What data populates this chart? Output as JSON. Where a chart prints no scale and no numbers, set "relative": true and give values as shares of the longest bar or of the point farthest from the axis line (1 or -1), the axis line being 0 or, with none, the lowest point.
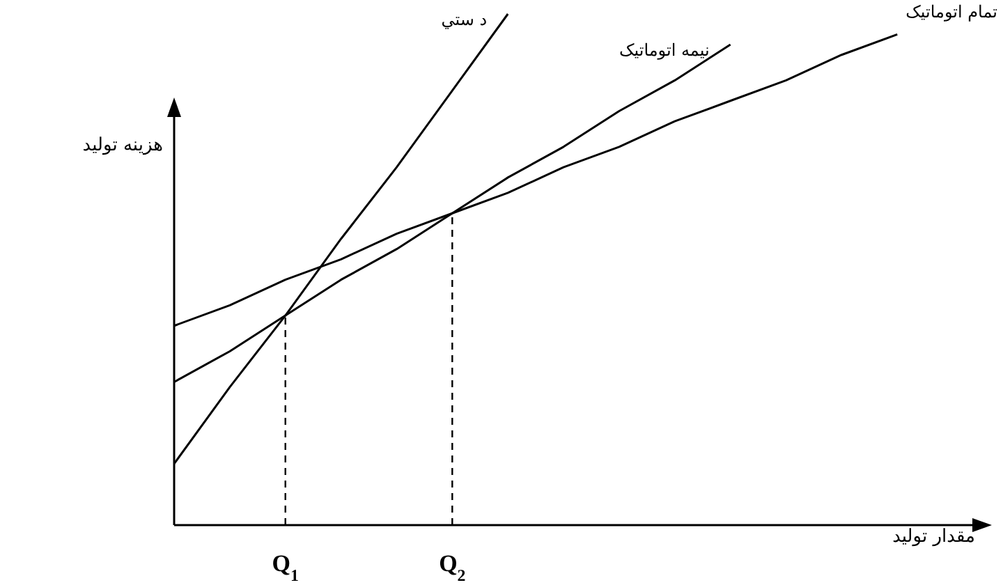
{
  "chart_data": {
    "type": "line",
    "relative": true,
    "xlabel": "مقدار تولید",
    "ylabel": "هزینه تولید",
    "categories": [
      null,
      null,
      "Q$_{1}$",
      null,
      null,
      "Q$_{2}$",
      null,
      null,
      null,
      null,
      null,
      null,
      null,
      null,
      null
    ],
    "tick_labels": "x",
    "legend": false,
    "series": [
      {
        "name": "د ستي",
        "color": "#000000",
        "values": [
          0.12,
          0.27,
          0.41,
          0.56,
          0.7,
          0.85,
          1,
          null,
          null,
          null,
          null,
          null,
          null,
          null,
          null
        ]
      },
      {
        "name": "نیمه اتوماتیک",
        "color": "#000000",
        "values": [
          0.28,
          0.34,
          0.41,
          0.48,
          0.54,
          0.61,
          0.68,
          0.74,
          0.81,
          0.87,
          0.94,
          null,
          null,
          null,
          null
        ]
      },
      {
        "name": "تمام اتوماتیک",
        "color": "#000000",
        "values": [
          0.39,
          0.43,
          0.48,
          0.52,
          0.57,
          0.61,
          0.65,
          0.7,
          0.74,
          0.79,
          0.83,
          0.87,
          0.92,
          0.96,
          null
        ]
      }
    ],
    "ref_lines": [
      {
        "axis": "x",
        "value": "Q$_{1}$",
        "line_style": "dashed"
      },
      {
        "axis": "x",
        "value": "Q$_{2}$",
        "line_style": "dashed"
      }
    ]
  }
}
